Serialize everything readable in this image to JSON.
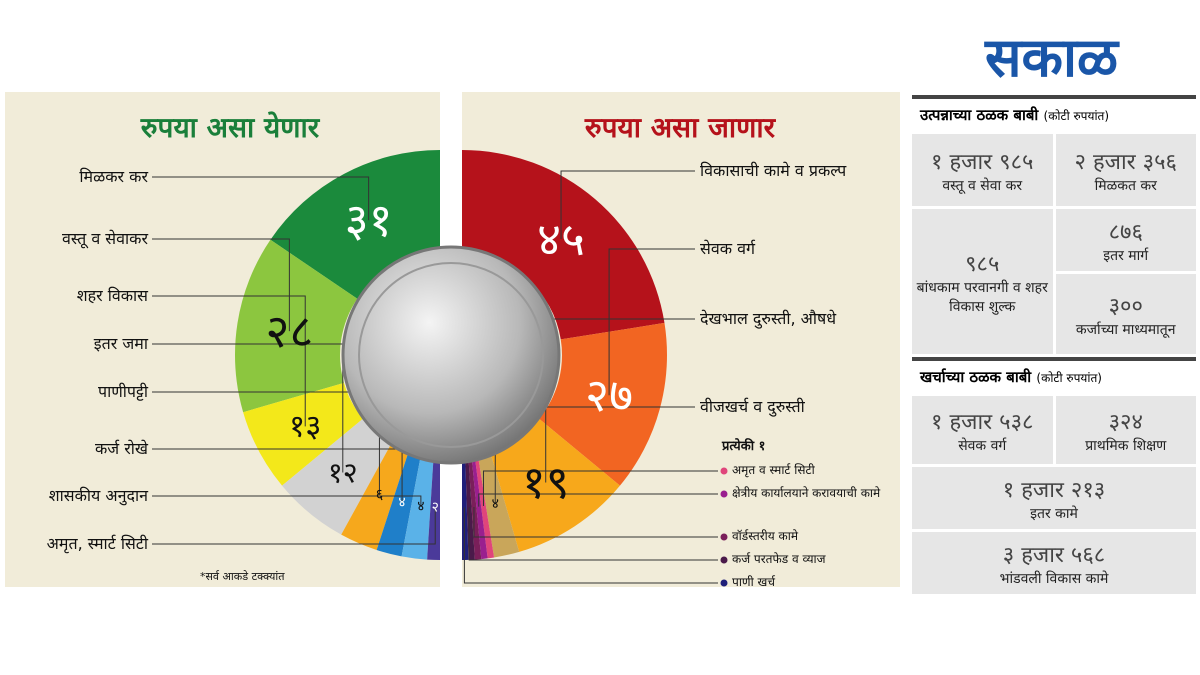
{
  "logo": "सकाळ",
  "chart_data": [
    {
      "type": "donut",
      "orientation": "left",
      "title": "रुपया असा येणार",
      "title_color": "#1a7f3a",
      "categories": [
        "मिळकर कर",
        "वस्तू व सेवाकर",
        "शहर विकास",
        "इतर जमा",
        "पाणीपट्टी",
        "कर्ज रोखे",
        "शासकीय अनुदान",
        "अमृत, स्मार्ट सिटी"
      ],
      "values": [
        31,
        28,
        13,
        12,
        6,
        4,
        4,
        2
      ],
      "value_labels": [
        "३१",
        "२८",
        "१३",
        "१२",
        "६",
        "४",
        "४",
        "२"
      ],
      "colors": [
        "#1b8a3c",
        "#8cc63f",
        "#f3e81a",
        "#d2d2d2",
        "#f6a81c",
        "#1f7fc9",
        "#5ab2e8",
        "#4b3a9a"
      ],
      "note": "*सर्व आकडे टक्क्यांत"
    },
    {
      "type": "donut",
      "orientation": "right",
      "title": "रुपया असा जाणार",
      "title_color": "#b5121b",
      "categories": [
        "विकासाची कामे व प्रकल्प",
        "सेवक वर्ग",
        "देखभाल दुरुस्ती, औषधे",
        "वीजखर्च व दुरुस्ती",
        "अमृत व स्मार्ट सिटी",
        "क्षेत्रीय कार्यालयाने करावयाची कामे",
        "वॉर्डस्तरीय कामे",
        "कर्ज परतफेड व व्याज",
        "पाणी खर्च"
      ],
      "values": [
        45,
        27,
        19,
        4,
        1,
        1,
        1,
        1,
        1
      ],
      "value_labels": [
        "४५",
        "२७",
        "१९",
        "४",
        null,
        null,
        null,
        null,
        null
      ],
      "colors": [
        "#b5121b",
        "#f26522",
        "#f7a81b",
        "#c9a65a",
        "#e0457b",
        "#9a1f8f",
        "#7a1f5a",
        "#4a1a4a",
        "#1f1f7a"
      ],
      "note": "प्रत्येकी १"
    }
  ],
  "table": {
    "sections": [
      {
        "title": "उत्पन्नाच्या ठळक बाबी",
        "unit": "(कोटी रुपयांत)",
        "cells": [
          {
            "value": "१ हजार ९८५",
            "label": "वस्तू व सेवा कर"
          },
          {
            "value": "२ हजार ३५६",
            "label": "मिळकत कर"
          },
          {
            "value": "९८५",
            "label": "बांधकाम परवानगी व शहर विकास शुल्क"
          },
          {
            "value": "८७६",
            "label": "इतर मार्ग"
          },
          {
            "value": "३००",
            "label": "कर्जाच्या माध्यमातून"
          }
        ]
      },
      {
        "title": "खर्चाच्या ठळक बाबी",
        "unit": "(कोटी रुपयांत)",
        "cells": [
          {
            "value": "१ हजार ५३८",
            "label": "सेवक वर्ग"
          },
          {
            "value": "३२४",
            "label": "प्राथमिक शिक्षण"
          },
          {
            "value": "१ हजार २१३",
            "label": "इतर कामे"
          },
          {
            "value": "३ हजार ५६८",
            "label": "भांडवली विकास कामे"
          }
        ]
      }
    ]
  }
}
